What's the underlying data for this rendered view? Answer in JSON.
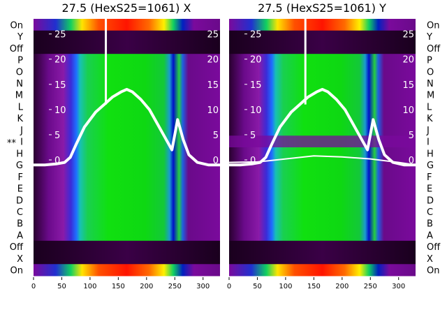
{
  "chart_data": [
    {
      "type": "heatmap",
      "title": "27.5 (HexS25=1061) X",
      "xlim": [
        0,
        330
      ],
      "ylim": [
        -23,
        28
      ],
      "x_ticks": [
        0,
        50,
        100,
        150,
        200,
        250,
        300
      ],
      "y_ticks": [
        0,
        5,
        10,
        15,
        20,
        25
      ],
      "rows_labels": [
        "On",
        "Y",
        "Off",
        "P",
        "O",
        "N",
        "M",
        "L",
        "K",
        "J",
        "I",
        "H",
        "G",
        "F",
        "E",
        "D",
        "C",
        "B",
        "A",
        "Off",
        "X",
        "On"
      ],
      "marked_row": "I",
      "marker_text": "**",
      "series": [
        {
          "values_x": [
            0,
            20,
            40,
            55,
            65,
            75,
            90,
            110,
            125,
            140,
            155,
            165,
            175,
            190,
            205,
            220,
            235,
            245,
            255,
            265,
            275,
            290,
            310,
            330
          ],
          "values_y": [
            -1,
            -1,
            -0.8,
            -0.5,
            0.5,
            3,
            6.5,
            9.5,
            11,
            12.5,
            13.5,
            14,
            13.5,
            12,
            10,
            7,
            4,
            2,
            8,
            4,
            1,
            -0.5,
            -1,
            -1
          ]
        }
      ]
    },
    {
      "type": "heatmap",
      "title": "27.5 (HexS25=1061) Y",
      "xlim": [
        0,
        330
      ],
      "ylim": [
        -23,
        28
      ],
      "x_ticks": [
        0,
        50,
        100,
        150,
        200,
        250,
        300
      ],
      "y_ticks": [
        0,
        5,
        10,
        15,
        20,
        25
      ],
      "rows_labels": [
        "On",
        "Y",
        "Off",
        "P",
        "O",
        "N",
        "M",
        "L",
        "K",
        "J",
        "I",
        "H",
        "G",
        "F",
        "E",
        "D",
        "C",
        "B",
        "A",
        "Off",
        "X",
        "On"
      ],
      "series": [
        {
          "values_x": [
            0,
            20,
            40,
            55,
            65,
            75,
            90,
            110,
            125,
            140,
            155,
            165,
            175,
            190,
            205,
            220,
            235,
            245,
            255,
            265,
            275,
            290,
            310,
            330
          ],
          "values_y": [
            -1,
            -1,
            -0.8,
            -0.5,
            0.5,
            3,
            6.5,
            9.5,
            11,
            12.5,
            13.5,
            14,
            13.5,
            12,
            10,
            7,
            4,
            2,
            8,
            4,
            1,
            -0.5,
            -1,
            -1
          ]
        },
        {
          "values_x": [
            0,
            50,
            100,
            150,
            200,
            250,
            300,
            330
          ],
          "values_y": [
            -0.5,
            -0.4,
            0.2,
            0.8,
            0.6,
            0.2,
            -0.5,
            -1
          ]
        }
      ]
    }
  ]
}
